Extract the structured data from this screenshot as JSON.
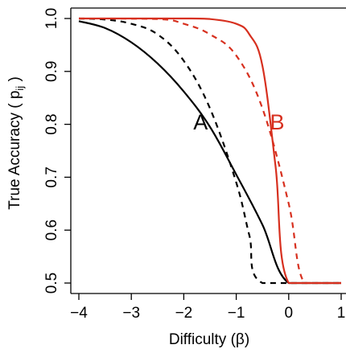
{
  "chart_data": {
    "type": "line",
    "title": "",
    "xlabel": "Difficulty (β)",
    "ylabel_parts": {
      "main": "True Accuracy ( p",
      "sub": "ij",
      "close": " )"
    },
    "xlim": [
      -4.0,
      1.05
    ],
    "ylim": [
      0.5,
      1.0
    ],
    "x_ticks": [
      -4,
      -3,
      -2,
      -1,
      0,
      1
    ],
    "x_tick_labels": [
      "−4",
      "−3",
      "−2",
      "−1",
      "0",
      "1"
    ],
    "y_ticks": [
      0.5,
      0.6,
      0.7,
      0.8,
      0.9,
      1.0
    ],
    "y_tick_labels": [
      "0.5",
      "0.6",
      "0.7",
      "0.8",
      "0.9",
      "1.0"
    ],
    "grid": false,
    "colors": {
      "A": "#000000",
      "B": "#d7301f"
    },
    "series": [
      {
        "name": "A",
        "style": "solid",
        "color": "#000000",
        "x": [
          -4,
          -3.5,
          -3,
          -2.5,
          -2,
          -1.5,
          -1,
          -0.5,
          0,
          1
        ],
        "y": [
          0.995,
          0.982,
          0.955,
          0.915,
          0.862,
          0.795,
          0.705,
          0.61,
          0.5,
          0.5
        ]
      },
      {
        "name": "A",
        "style": "dashed",
        "color": "#000000",
        "x": [
          -4,
          -3.5,
          -3,
          -2.5,
          -2,
          -1.5,
          -1,
          -0.75,
          -0.5,
          1
        ],
        "y": [
          1.0,
          0.998,
          0.99,
          0.97,
          0.92,
          0.83,
          0.69,
          0.59,
          0.5,
          0.5
        ]
      },
      {
        "name": "B",
        "style": "solid",
        "color": "#d7301f",
        "x": [
          -4,
          -2,
          -1.5,
          -1,
          -0.75,
          -0.5,
          -0.25,
          0,
          1
        ],
        "y": [
          1.0,
          1.0,
          0.999,
          0.99,
          0.97,
          0.91,
          0.72,
          0.5,
          0.5
        ]
      },
      {
        "name": "B",
        "style": "dashed",
        "color": "#d7301f",
        "x": [
          -4,
          -2.5,
          -2,
          -1.5,
          -1,
          -0.5,
          0,
          0.3,
          1
        ],
        "y": [
          1.0,
          0.999,
          0.99,
          0.97,
          0.93,
          0.83,
          0.65,
          0.5,
          0.5
        ]
      }
    ],
    "annotations": [
      {
        "text": "A",
        "x": -1.68,
        "y": 0.79,
        "color": "#000000"
      },
      {
        "text": "B",
        "x": -0.22,
        "y": 0.79,
        "color": "#d7301f"
      }
    ]
  }
}
